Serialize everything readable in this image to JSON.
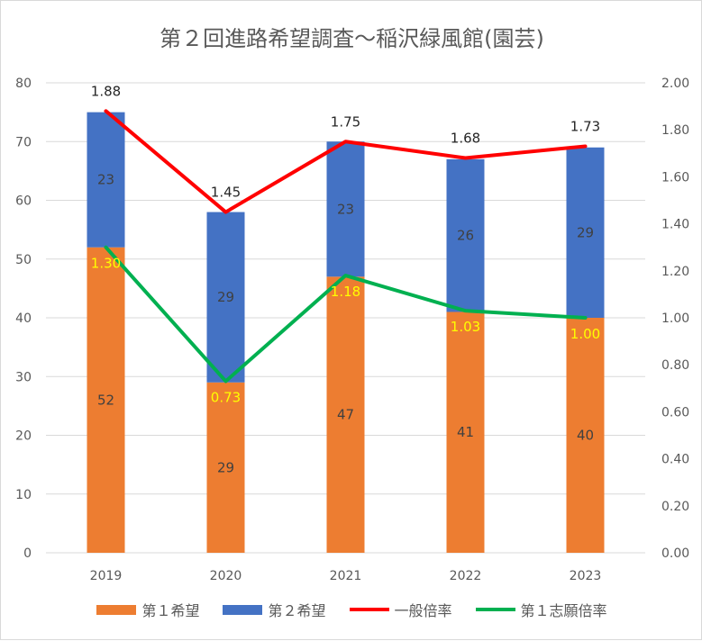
{
  "chart_data": {
    "type": "bar",
    "title": "第２回進路希望調査～稲沢緑風館(園芸)",
    "categories": [
      "2019",
      "2020",
      "2021",
      "2022",
      "2023"
    ],
    "series": [
      {
        "name": "第１希望",
        "kind": "bar",
        "axis": "left",
        "color": "#ED7D31",
        "values": [
          52,
          29,
          47,
          41,
          40
        ]
      },
      {
        "name": "第２希望",
        "kind": "bar",
        "axis": "left",
        "color": "#4472C4",
        "values": [
          23,
          29,
          23,
          26,
          29
        ]
      },
      {
        "name": "一般倍率",
        "kind": "line",
        "axis": "right",
        "color": "#FF0000",
        "values": [
          1.88,
          1.45,
          1.75,
          1.68,
          1.73
        ]
      },
      {
        "name": "第１志願倍率",
        "kind": "line",
        "axis": "right",
        "color": "#00B050",
        "values": [
          1.3,
          0.73,
          1.18,
          1.03,
          1.0
        ]
      }
    ],
    "stacked": true,
    "ylim": [
      0,
      80
    ],
    "yticks": [
      "0",
      "10",
      "20",
      "30",
      "40",
      "50",
      "60",
      "70",
      "80"
    ],
    "y2lim": [
      0,
      2.0
    ],
    "y2ticks": [
      "0.00",
      "0.20",
      "0.40",
      "0.60",
      "0.80",
      "1.00",
      "1.20",
      "1.40",
      "1.60",
      "1.80",
      "2.00"
    ],
    "grid": true,
    "legend_position": "bottom",
    "data_label_colors": {
      "bars": "#404040",
      "green_line": "#FFFF00",
      "red_line": "#262626"
    }
  }
}
